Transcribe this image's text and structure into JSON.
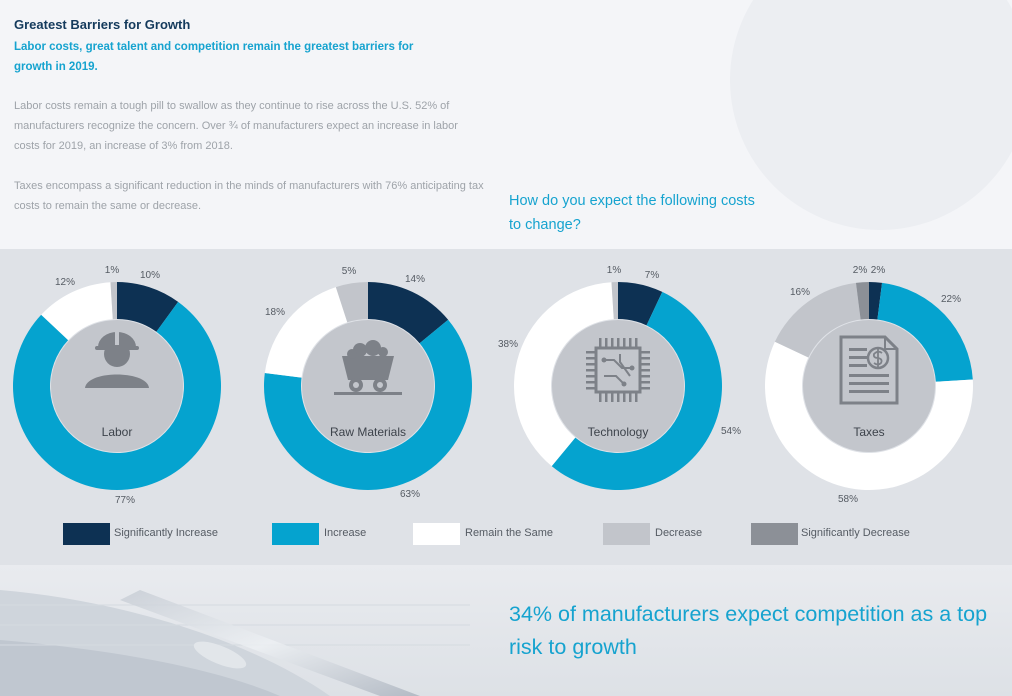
{
  "header": {
    "title": "Greatest Barriers for Growth",
    "subtitle": "Labor costs, great talent and competition remain the greatest barriers for growth in 2019."
  },
  "body": {
    "paragraph1": "Labor costs remain a tough pill to swallow as they continue to rise across the U.S. 52% of manufacturers recognize the concern. Over ¾ of manufacturers expect an increase in labor costs for 2019, an increase of 3% from 2018.",
    "paragraph2": "Taxes encompass a significant reduction in the minds of manufacturers with 76% anticipating tax costs to remain the same or decrease."
  },
  "question": "How do you expect the following costs to change?",
  "colors": {
    "significantly_increase": "#0d3153",
    "increase": "#05a3cf",
    "remain_the_same": "#ffffff",
    "decrease": "#c2c5cb",
    "significantly_decrease": "#8c9097",
    "center": "#c3c6cc",
    "icon": "#7d8188"
  },
  "chart_data": {
    "type": "pie",
    "variant": "donut",
    "title": "How do you expect the following costs to change?",
    "series_names": [
      "Significantly Increase",
      "Increase",
      "Remain the Same",
      "Decrease",
      "Significantly Decrease"
    ],
    "legend_position": "bottom",
    "charts": [
      {
        "name": "Labor",
        "icon": "worker-icon",
        "slices": [
          {
            "series": "Significantly Increase",
            "value": 10,
            "label": "10%"
          },
          {
            "series": "Increase",
            "value": 77,
            "label": "77%"
          },
          {
            "series": "Remain the Same",
            "value": 12,
            "label": "12%"
          },
          {
            "series": "Decrease",
            "value": 1,
            "label": "1%"
          }
        ]
      },
      {
        "name": "Raw Materials",
        "icon": "mine-cart-icon",
        "slices": [
          {
            "series": "Significantly Increase",
            "value": 14,
            "label": "14%"
          },
          {
            "series": "Increase",
            "value": 63,
            "label": "63%"
          },
          {
            "series": "Remain the Same",
            "value": 18,
            "label": "18%"
          },
          {
            "series": "Decrease",
            "value": 5,
            "label": "5%"
          }
        ]
      },
      {
        "name": "Technology",
        "icon": "microchip-icon",
        "slices": [
          {
            "series": "Significantly Increase",
            "value": 7,
            "label": "7%"
          },
          {
            "series": "Increase",
            "value": 54,
            "label": "54%"
          },
          {
            "series": "Remain the Same",
            "value": 38,
            "label": "38%"
          },
          {
            "series": "Decrease",
            "value": 1,
            "label": "1%"
          }
        ]
      },
      {
        "name": "Taxes",
        "icon": "tax-document-icon",
        "slices": [
          {
            "series": "Significantly Increase",
            "value": 2,
            "label": "2%"
          },
          {
            "series": "Increase",
            "value": 22,
            "label": "22%"
          },
          {
            "series": "Remain the Same",
            "value": 58,
            "label": "58%"
          },
          {
            "series": "Decrease",
            "value": 16,
            "label": "16%"
          },
          {
            "series": "Significantly Decrease",
            "value": 2,
            "label": "2%"
          }
        ]
      }
    ]
  },
  "callout": "34% of manufacturers expect competition as a top risk to growth"
}
